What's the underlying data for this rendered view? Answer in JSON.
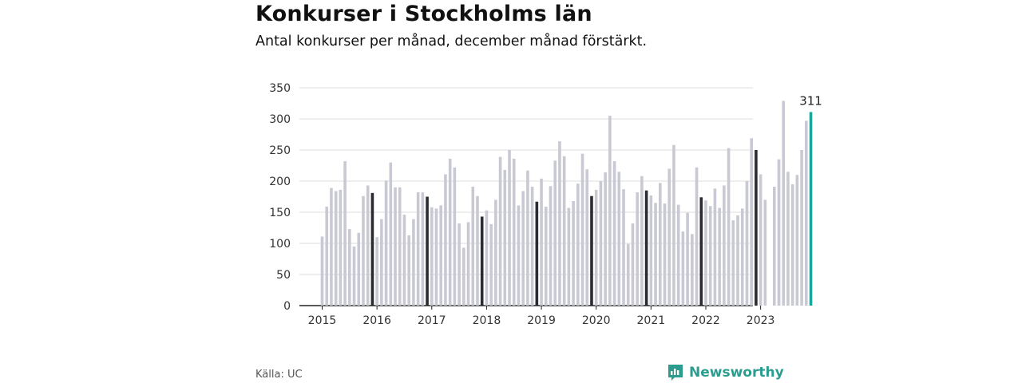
{
  "header": {
    "title": "Konkurser i Stockholms län",
    "subtitle": "Antal konkurser per månad, december månad förstärkt."
  },
  "footer": {
    "source": "Källa: UC",
    "brand": "Newsworthy"
  },
  "colors": {
    "bar": "#c9c9d3",
    "december": "#2b2b33",
    "latest": "#1aa69a",
    "grid": "#dddddd",
    "axis": "#222222",
    "brand": "#2a9d8f"
  },
  "chart_data": {
    "type": "bar",
    "xlabel": "",
    "ylabel": "",
    "ylim": [
      0,
      350
    ],
    "yticks": [
      0,
      50,
      100,
      150,
      200,
      250,
      300,
      350
    ],
    "x_tick_labels": [
      "2015",
      "2016",
      "2017",
      "2018",
      "2019",
      "2020",
      "2021",
      "2022",
      "2023"
    ],
    "start_year": 2015,
    "highlight": "december",
    "latest_label": "311",
    "values": [
      111,
      159,
      189,
      184,
      186,
      232,
      123,
      95,
      117,
      176,
      193,
      181,
      110,
      139,
      201,
      230,
      190,
      190,
      146,
      113,
      139,
      182,
      182,
      175,
      158,
      156,
      161,
      211,
      236,
      222,
      132,
      93,
      134,
      191,
      176,
      143,
      153,
      131,
      170,
      239,
      218,
      250,
      236,
      161,
      184,
      217,
      191,
      167,
      204,
      159,
      192,
      233,
      264,
      240,
      157,
      168,
      196,
      244,
      219,
      176,
      186,
      200,
      214,
      305,
      232,
      215,
      187,
      99,
      132,
      182,
      208,
      185,
      177,
      165,
      197,
      164,
      220,
      258,
      162,
      119,
      149,
      115,
      222,
      174,
      169,
      160,
      188,
      157,
      193,
      253,
      137,
      145,
      156,
      200,
      269,
      250,
      211,
      170,
      0,
      191,
      235,
      329,
      215,
      195,
      210,
      250,
      297,
      311
    ]
  }
}
